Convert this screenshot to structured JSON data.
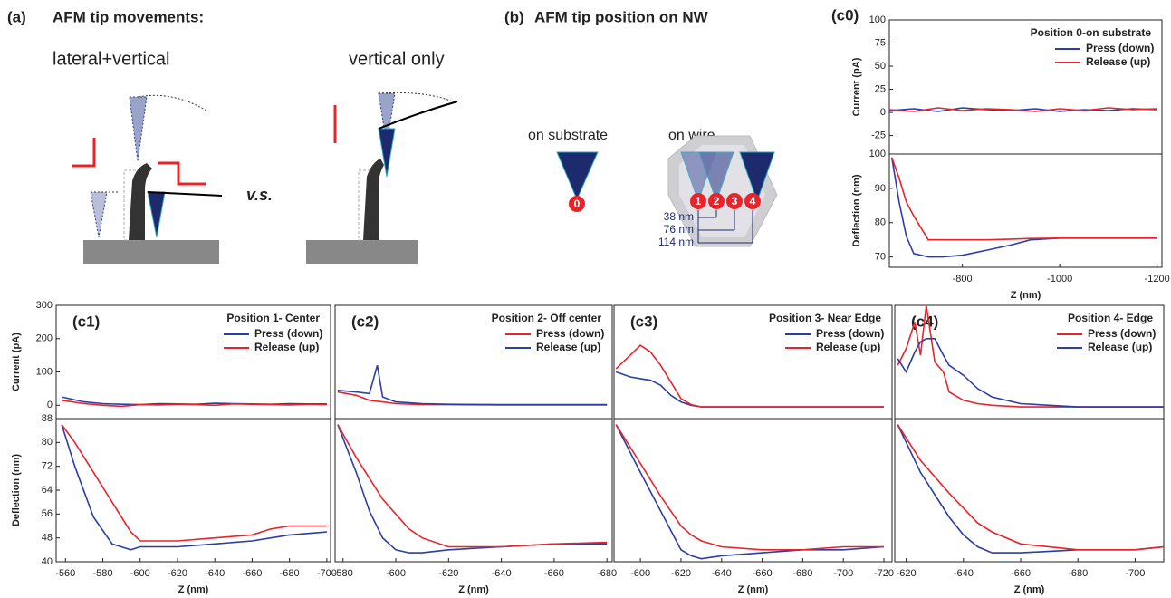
{
  "panel_a": {
    "label": "(a)",
    "title": "AFM tip movements:",
    "left": "lateral+vertical",
    "right": "vertical only",
    "versus": "v.s."
  },
  "panel_b": {
    "label": "(b)",
    "title": "AFM tip position on NW",
    "substrate": "on substrate",
    "wire": "on wire",
    "markers": [
      "0",
      "1",
      "2",
      "3",
      "4"
    ],
    "distances": [
      "38 nm",
      "76 nm",
      "114 nm"
    ]
  },
  "chart_data": [
    {
      "type": "line",
      "label": "(c0)",
      "legend_title": "Position 0-on substrate",
      "xlabel": "Z (nm)",
      "xlim": [
        -650,
        -1210
      ],
      "xticks": [
        -800,
        -1000,
        -1200
      ],
      "panels": [
        {
          "ylabel": "Current (pA)",
          "ylim": [
            -45,
            100
          ],
          "yticks": [
            -25,
            0,
            25,
            50,
            75,
            100
          ],
          "x": [
            -650,
            -700,
            -750,
            -800,
            -850,
            -900,
            -950,
            -1000,
            -1050,
            -1100,
            -1150,
            -1200
          ],
          "series": [
            {
              "name": "Press (down)",
              "color": "#2b3ea8",
              "values": [
                2,
                4,
                1,
                5,
                3,
                2,
                4,
                1,
                3,
                2,
                4,
                3
              ]
            },
            {
              "name": "Release (up)",
              "color": "#e8242a",
              "values": [
                3,
                1,
                5,
                2,
                4,
                3,
                1,
                4,
                2,
                5,
                3,
                4
              ]
            }
          ]
        },
        {
          "ylabel": "Deflection (nm)",
          "ylim": [
            67,
            100
          ],
          "yticks": [
            70,
            80,
            90,
            100
          ],
          "x": [
            -655,
            -670,
            -685,
            -700,
            -730,
            -760,
            -800,
            -850,
            -900,
            -940,
            -1000,
            -1100,
            -1200
          ],
          "series": [
            {
              "color": "#2b3ea8",
              "values": [
                99,
                86,
                76,
                71,
                70,
                70,
                70.5,
                72,
                73.5,
                75,
                75.5,
                75.5,
                75.5
              ]
            },
            {
              "color": "#e8242a",
              "values": [
                99,
                93,
                86,
                82,
                75,
                75,
                75,
                75,
                75.2,
                75.4,
                75.5,
                75.5,
                75.5
              ]
            }
          ]
        }
      ]
    },
    {
      "type": "line",
      "label": "(c1)",
      "legend_title": "Position  1- Center",
      "xlabel": "Z (nm)",
      "xlim": [
        -555,
        -702
      ],
      "xticks": [
        -560,
        -580,
        -600,
        -620,
        -640,
        -660,
        -680,
        -700
      ],
      "panels": [
        {
          "ylabel": "Current (pA)",
          "ylim": [
            -40,
            300
          ],
          "yticks": [
            0,
            100,
            200,
            300
          ],
          "x": [
            -558,
            -570,
            -580,
            -590,
            -600,
            -610,
            -620,
            -630,
            -640,
            -650,
            -660,
            -670,
            -680,
            -690,
            -700
          ],
          "series": [
            {
              "name": "Press (down)",
              "color": "#2b3ea8",
              "values": [
                25,
                10,
                5,
                3,
                2,
                5,
                4,
                3,
                6,
                5,
                4,
                3,
                5,
                4,
                4
              ]
            },
            {
              "name": "Release (up)",
              "color": "#e8242a",
              "values": [
                15,
                5,
                0,
                -3,
                2,
                1,
                3,
                2,
                0,
                4,
                3,
                2,
                1,
                3,
                2
              ]
            }
          ]
        },
        {
          "ylabel": "Deflection (nm)",
          "ylim": [
            40,
            88
          ],
          "yticks": [
            40,
            48,
            56,
            64,
            72,
            80,
            88
          ],
          "x": [
            -558,
            -565,
            -575,
            -585,
            -595,
            -600,
            -620,
            -640,
            -660,
            -670,
            -680,
            -700
          ],
          "series": [
            {
              "color": "#2b3ea8",
              "values": [
                86,
                72,
                55,
                46,
                44,
                45,
                45,
                46,
                47,
                48,
                49,
                50
              ]
            },
            {
              "color": "#e8242a",
              "values": [
                86,
                80,
                70,
                60,
                50,
                47,
                47,
                48,
                49,
                51,
                52,
                52
              ]
            }
          ]
        }
      ]
    },
    {
      "type": "line",
      "label": "(c2)",
      "legend_title": "Position  2- Off center",
      "xlabel": "Z (nm)",
      "xlim": [
        -577,
        -682
      ],
      "xticks": [
        -580,
        -600,
        -620,
        -640,
        -660,
        -680
      ],
      "panels": [
        {
          "ylim": [
            -40,
            300
          ],
          "x": [
            -578,
            -585,
            -590,
            -593,
            -595,
            -600,
            -610,
            -620,
            -640,
            -660,
            -680
          ],
          "series": [
            {
              "name": "Press (down)",
              "color": "#e8242a",
              "values": [
                40,
                30,
                15,
                12,
                10,
                5,
                2,
                2,
                1,
                1,
                1
              ]
            },
            {
              "name": "Release (up)",
              "color": "#2b3ea8",
              "values": [
                45,
                40,
                35,
                120,
                25,
                10,
                5,
                3,
                2,
                2,
                2
              ]
            }
          ]
        },
        {
          "ylim": [
            40,
            88
          ],
          "x": [
            -578,
            -585,
            -590,
            -595,
            -600,
            -605,
            -610,
            -620,
            -640,
            -660,
            -680
          ],
          "series": [
            {
              "color": "#2b3ea8",
              "values": [
                86,
                70,
                57,
                48,
                44,
                43,
                43,
                44,
                45,
                46,
                46
              ]
            },
            {
              "color": "#e8242a",
              "values": [
                86,
                75,
                68,
                61,
                56,
                51,
                48,
                45,
                45,
                46,
                46.5
              ]
            }
          ]
        }
      ]
    },
    {
      "type": "line",
      "label": "(c3)",
      "legend_title": "Position  3- Near Edge",
      "xlabel": "Z (nm)",
      "xlim": [
        -587,
        -724
      ],
      "xticks": [
        -600,
        -620,
        -640,
        -660,
        -680,
        -700,
        -720
      ],
      "panels": [
        {
          "ylim": [
            -40,
            300
          ],
          "x": [
            -588,
            -595,
            -600,
            -605,
            -610,
            -615,
            -620,
            -625,
            -630,
            -660,
            -690,
            -720
          ],
          "series": [
            {
              "name": "Press (down)",
              "color": "#2b3ea8",
              "values": [
                100,
                85,
                80,
                75,
                60,
                30,
                10,
                0,
                -5,
                -5,
                -5,
                -5
              ]
            },
            {
              "name": "Release (up)",
              "color": "#e8242a",
              "values": [
                110,
                150,
                180,
                160,
                120,
                70,
                20,
                2,
                -5,
                -5,
                -5,
                -5
              ]
            }
          ]
        },
        {
          "ylim": [
            40,
            88
          ],
          "x": [
            -588,
            -600,
            -610,
            -620,
            -625,
            -630,
            -640,
            -660,
            -680,
            -700,
            -720
          ],
          "series": [
            {
              "color": "#2b3ea8",
              "values": [
                86,
                70,
                57,
                44,
                42,
                41,
                42,
                43,
                44,
                44,
                45
              ]
            },
            {
              "color": "#e8242a",
              "values": [
                86,
                73,
                62,
                52,
                49,
                47,
                45,
                44,
                44,
                45,
                45
              ]
            }
          ]
        }
      ]
    },
    {
      "type": "line",
      "label": "(c4)",
      "legend_title": "Position  4- Edge",
      "xlabel": "Z (nm)",
      "xlim": [
        -616,
        -710
      ],
      "xticks": [
        -620,
        -640,
        -660,
        -680,
        -700
      ],
      "panels": [
        {
          "ylim": [
            -40,
            300
          ],
          "x": [
            -617,
            -620,
            -623,
            -625,
            -627,
            -630,
            -633,
            -635,
            -640,
            -645,
            -650,
            -660,
            -680,
            -710
          ],
          "series": [
            {
              "name": "Press (down)",
              "color": "#e8242a",
              "values": [
                120,
                170,
                250,
                150,
                300,
                130,
                100,
                40,
                15,
                5,
                0,
                -5,
                -5,
                -5
              ]
            },
            {
              "name": "Release (up)",
              "color": "#2b3ea8",
              "values": [
                140,
                100,
                160,
                190,
                200,
                200,
                150,
                120,
                90,
                50,
                25,
                5,
                -5,
                -5
              ]
            }
          ]
        },
        {
          "ylim": [
            40,
            88
          ],
          "x": [
            -617,
            -625,
            -635,
            -640,
            -645,
            -650,
            -660,
            -680,
            -700,
            -710
          ],
          "series": [
            {
              "color": "#2b3ea8",
              "values": [
                86,
                70,
                55,
                49,
                45,
                43,
                43,
                44,
                44,
                45
              ]
            },
            {
              "color": "#e8242a",
              "values": [
                86,
                74,
                63,
                58,
                53,
                50,
                46,
                44,
                44,
                45
              ]
            }
          ]
        }
      ]
    }
  ]
}
